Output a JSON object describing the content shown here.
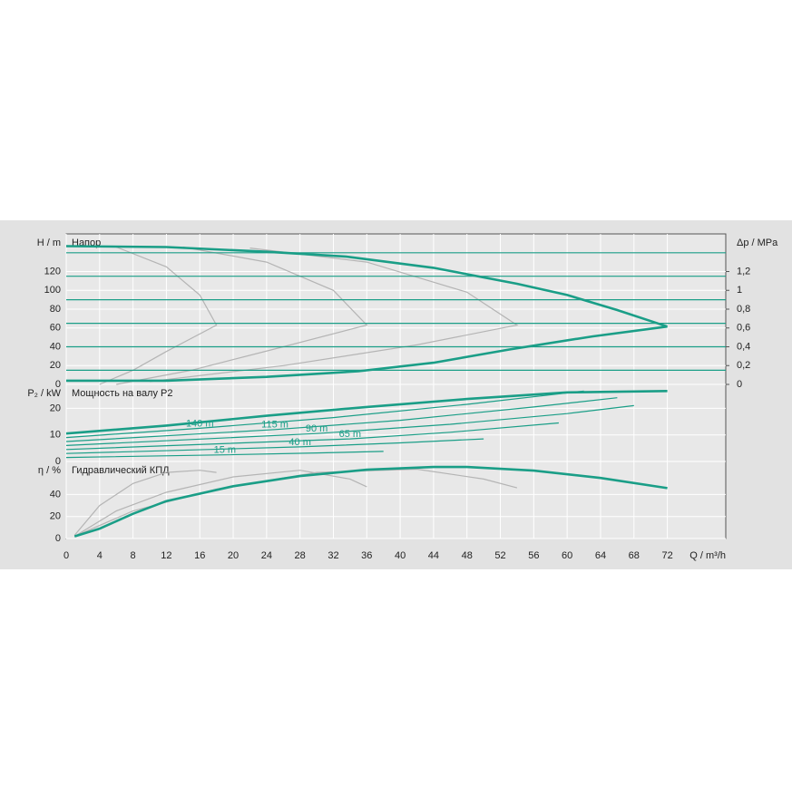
{
  "chart_data": [
    {
      "type": "line",
      "title": "Напор",
      "ylabel": "H / m",
      "y2label": "Δp / MPa",
      "xlim": [
        0,
        79
      ],
      "ylim": [
        0,
        160
      ],
      "yticks": [
        0,
        20,
        40,
        60,
        80,
        100,
        120
      ],
      "y2lim": [
        0,
        1.6
      ],
      "y2ticks": [
        0,
        {
          "value": 0.2,
          "label": "0,2"
        },
        {
          "value": 0.4,
          "label": "0,4"
        },
        {
          "value": 0.6,
          "label": "0,6"
        },
        {
          "value": 0.8,
          "label": "0,8"
        },
        1,
        {
          "value": 1.2,
          "label": "1,2"
        }
      ],
      "grid": true,
      "series": [
        {
          "color": "#b4b4b4",
          "x": [
            6,
            12,
            16,
            18,
            12,
            8,
            4
          ],
          "values": [
            146,
            125,
            95,
            63,
            35,
            15,
            0
          ]
        },
        {
          "color": "#b4b4b4",
          "x": [
            14,
            24,
            32,
            36,
            26,
            15,
            6
          ],
          "values": [
            146,
            130,
            100,
            63,
            40,
            15,
            0
          ]
        },
        {
          "color": "#b4b4b4",
          "x": [
            22,
            36,
            48,
            54,
            42,
            26,
            10
          ],
          "values": [
            145,
            130,
            98,
            63,
            42,
            20,
            3
          ]
        },
        {
          "color": "#1a9e87",
          "x": [
            0,
            79
          ],
          "values": [
            140,
            140
          ]
        },
        {
          "color": "#1a9e87",
          "x": [
            0,
            79
          ],
          "values": [
            115,
            115
          ]
        },
        {
          "color": "#1a9e87",
          "x": [
            0,
            79
          ],
          "values": [
            90,
            90
          ]
        },
        {
          "color": "#1a9e87",
          "x": [
            0,
            79
          ],
          "values": [
            65,
            65
          ]
        },
        {
          "color": "#1a9e87",
          "x": [
            0,
            79
          ],
          "values": [
            40,
            40
          ]
        },
        {
          "color": "#1a9e87",
          "x": [
            0,
            79
          ],
          "values": [
            15,
            15
          ]
        },
        {
          "color": "#1a9e87",
          "bold": true,
          "x": [
            0,
            12,
            24,
            33.4,
            44,
            54,
            60,
            66,
            72
          ],
          "values": [
            147,
            146,
            141,
            136,
            124,
            107,
            95,
            79,
            61.5
          ]
        },
        {
          "color": "#1a9e87",
          "bold": true,
          "x": [
            0,
            12,
            24,
            35,
            44,
            53,
            63,
            72
          ],
          "values": [
            4,
            4,
            8,
            14,
            23,
            37,
            51,
            61.5
          ]
        }
      ]
    },
    {
      "type": "line",
      "title": "Мощность на валу P2",
      "ylabel": "P₂ / kW",
      "xlim": [
        0,
        79
      ],
      "ylim": [
        0,
        29
      ],
      "yticks": [
        0,
        10,
        20
      ],
      "grid": true,
      "series": [
        {
          "name": "140 m",
          "color": "#1a9e87",
          "x": [
            0,
            16,
            32,
            48,
            62
          ],
          "values": [
            9,
            12.5,
            16.5,
            21.5,
            26.5
          ]
        },
        {
          "name": "115 m",
          "color": "#1a9e87",
          "x": [
            0,
            25,
            40,
            56,
            66
          ],
          "values": [
            7.5,
            12,
            15.5,
            20.5,
            24
          ]
        },
        {
          "name": "90 m",
          "color": "#1a9e87",
          "x": [
            0,
            30,
            46,
            60,
            68
          ],
          "values": [
            6,
            10.5,
            14,
            18,
            21
          ]
        },
        {
          "name": "65 m",
          "color": "#1a9e87",
          "x": [
            0,
            34,
            46,
            59
          ],
          "values": [
            4.5,
            8.5,
            11,
            14.5
          ]
        },
        {
          "name": "40 m",
          "color": "#1a9e87",
          "x": [
            0,
            28,
            40,
            50
          ],
          "values": [
            3,
            5.5,
            7,
            8.5
          ]
        },
        {
          "name": "15 m",
          "color": "#1a9e87",
          "x": [
            0,
            19,
            30,
            38
          ],
          "values": [
            1.5,
            2.5,
            3.2,
            3.8
          ]
        },
        {
          "color": "#1a9e87",
          "bold": true,
          "x": [
            0,
            12,
            24,
            36,
            48,
            60,
            72
          ],
          "values": [
            10.5,
            13.5,
            17.2,
            20.5,
            23.5,
            26,
            26.5
          ]
        }
      ]
    },
    {
      "type": "line",
      "title": "Гидравлический КПД",
      "ylabel": "η / %",
      "xlabel": "Q / m³/h",
      "xlim": [
        0,
        79
      ],
      "ylim": [
        0,
        70
      ],
      "yticks": [
        0,
        20,
        40
      ],
      "grid": true,
      "xticks": [
        0,
        4,
        8,
        12,
        16,
        20,
        24,
        28,
        32,
        36,
        40,
        44,
        48,
        52,
        56,
        60,
        64,
        68,
        72
      ],
      "series": [
        {
          "color": "#b4b4b4",
          "x": [
            1,
            4,
            8,
            12,
            16,
            18
          ],
          "values": [
            3,
            30,
            50,
            60,
            62,
            60
          ]
        },
        {
          "color": "#b4b4b4",
          "x": [
            1,
            6,
            12,
            20,
            28,
            34,
            36
          ],
          "values": [
            2,
            25,
            42,
            56,
            62,
            54,
            47
          ]
        },
        {
          "color": "#b4b4b4",
          "x": [
            1,
            8,
            18,
            30,
            42,
            50,
            54
          ],
          "values": [
            2,
            25,
            45,
            60,
            63,
            54,
            46
          ]
        },
        {
          "color": "#1a9e87",
          "bold": true,
          "x": [
            1,
            4,
            8,
            12,
            20,
            28,
            36,
            44,
            48,
            56,
            64,
            72
          ],
          "values": [
            2,
            9,
            22.5,
            34,
            47.5,
            56.7,
            62.5,
            65,
            65,
            61.7,
            55,
            45.8
          ]
        }
      ]
    }
  ]
}
